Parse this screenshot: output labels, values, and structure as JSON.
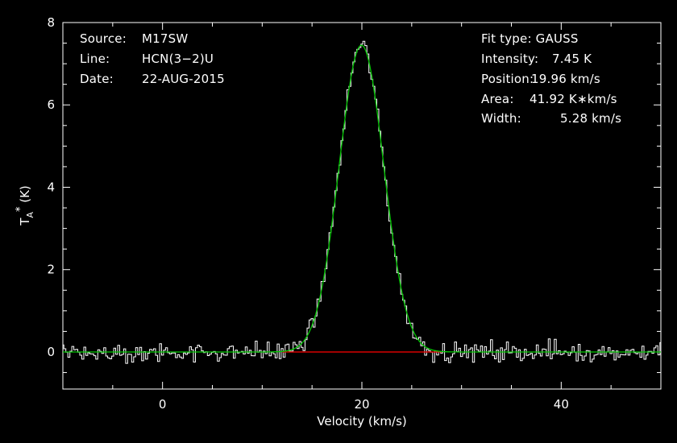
{
  "colors": {
    "background": "#000000",
    "axes": "#ffffff",
    "spectrum": "#ffffff",
    "fit": "#00c800",
    "baseline": "#e00000"
  },
  "annotations": {
    "source_label": "Source:",
    "source_value": "M17SW",
    "line_label": "Line:",
    "line_value": "HCN(3−2)U",
    "date_label": "Date:",
    "date_value": "22-AUG-2015",
    "fit_type": "Fit type: GAUSS",
    "intensity_label": "Intensity:",
    "intensity_value": "7.45 K",
    "position_label": "Position:",
    "position_value": "19.96 km/s",
    "area_label": "Area:",
    "area_value": "41.92 K∗km/s",
    "width_label": "Width:",
    "width_value": "5.28 km/s"
  },
  "chart_data": {
    "type": "line",
    "xlabel": "Velocity (km/s)",
    "ylabel_base": "T",
    "ylabel_sub": "A",
    "ylabel_sup": "*",
    "ylabel_unit": " (K)",
    "xlim": [
      -10,
      50
    ],
    "ylim": [
      -0.9,
      8.0
    ],
    "x_ticks": [
      0,
      20,
      40
    ],
    "y_ticks": [
      0,
      2,
      4,
      6,
      8
    ],
    "grid": false,
    "legend": "none",
    "fit": {
      "model": "gaussian",
      "amplitude": 7.45,
      "center": 19.96,
      "fwhm": 5.28,
      "area": 41.92
    },
    "spectrum": {
      "channel_width": 0.2,
      "x_start": -10,
      "x_end": 50,
      "noise_rms": 0.12
    },
    "series": [
      {
        "kind": "spectrum (histogram steps)"
      },
      {
        "kind": "gaussian fit"
      },
      {
        "kind": "baseline"
      }
    ]
  }
}
